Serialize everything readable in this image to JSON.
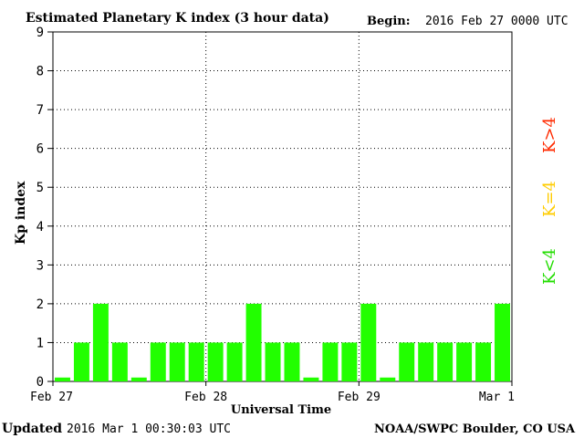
{
  "header": {
    "title": "Estimated Planetary K index (3 hour data)",
    "begin_label": "Begin:",
    "begin_value": "2016 Feb 27 0000 UTC"
  },
  "footer": {
    "updated_label": "Updated",
    "updated_value": "2016 Mar  1 00:30:03 UTC",
    "credit": "NOAA/SWPC Boulder, CO USA"
  },
  "legend": [
    {
      "label": "K>4",
      "color": "#ff2a00"
    },
    {
      "label": "K=4",
      "color": "#ffcc00"
    },
    {
      "label": "K<4",
      "color": "#22dd00"
    }
  ],
  "chart_data": {
    "type": "bar",
    "title": "Estimated Planetary K index (3 hour data)",
    "xlabel": "Universal Time",
    "ylabel": "Kp index",
    "ylim": [
      0,
      9
    ],
    "yticks": [
      "0",
      "1",
      "2",
      "3",
      "4",
      "5",
      "6",
      "7",
      "8",
      "9"
    ],
    "xticks": [
      "Feb 27",
      "Feb 28",
      "Feb 29",
      "Mar 1"
    ],
    "grid": true,
    "bar_color": "#22ff00",
    "values": [
      0.1,
      1,
      2,
      1,
      0.1,
      1,
      1,
      1,
      1,
      1,
      2,
      1,
      1,
      0.1,
      1,
      1,
      2,
      0.1,
      1,
      1,
      1,
      1,
      1,
      2
    ]
  }
}
